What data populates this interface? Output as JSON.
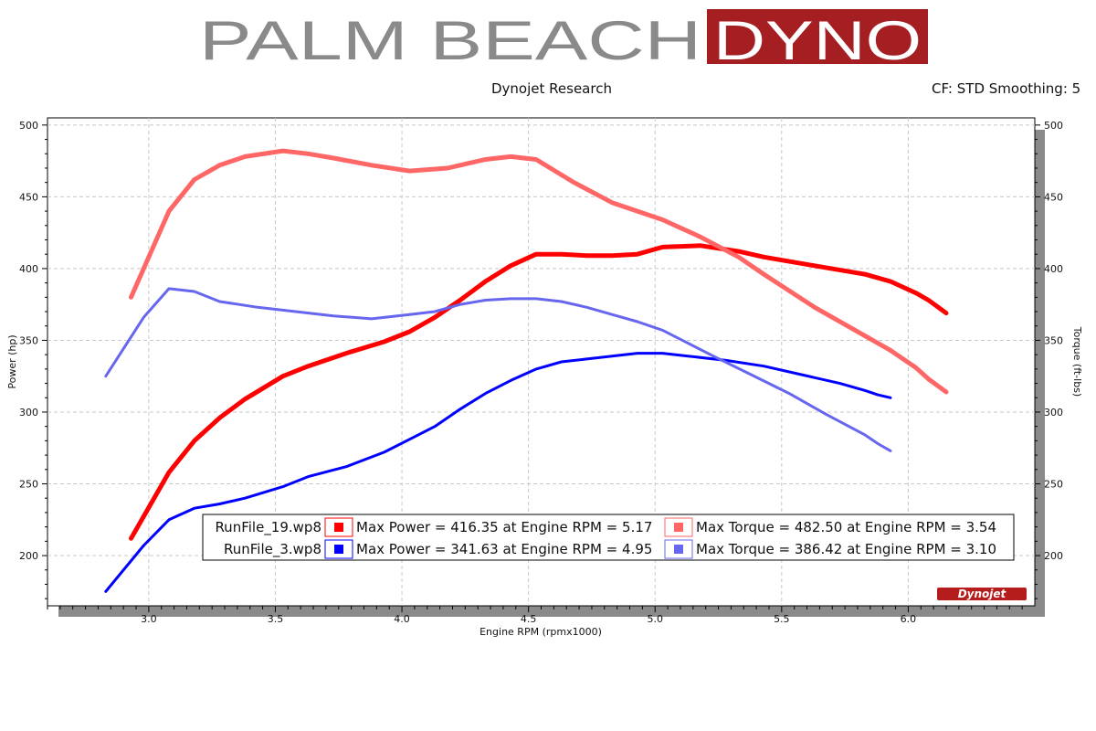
{
  "logo": {
    "part1": "PALM BEACH",
    "part2": "DYNO",
    "part1_color": "#8a8a8a",
    "part2_bg": "#a51e22",
    "part2_color": "#ffffff"
  },
  "header": {
    "title": "Dynojet Research",
    "settings": "CF: STD Smoothing: 5"
  },
  "brand_mark": "Dynojet",
  "chart_data": {
    "type": "line",
    "xlabel": "Engine RPM (rpmx1000)",
    "ylabel_left": "Power (hp)",
    "ylabel_right": "Torque (ft-lbs)",
    "xlim": [
      2.6,
      6.5
    ],
    "ylim": [
      165,
      505
    ],
    "x_ticks": [
      3.0,
      3.5,
      4.0,
      4.5,
      5.0,
      5.5,
      6.0
    ],
    "x_tick_labels": [
      "3.0",
      "3.5",
      "4.0",
      "4.5",
      "5.0",
      "5.5",
      "6.0"
    ],
    "y_ticks": [
      200,
      250,
      300,
      350,
      400,
      450,
      500
    ],
    "y_tick_labels": [
      "200",
      "250",
      "300",
      "350",
      "400",
      "450",
      "500"
    ],
    "grid": true,
    "legend_position": "bottom-center",
    "series": [
      {
        "name": "RunFile_19.wp8 Power",
        "file": "RunFile_19.wp8",
        "color": "#ff0000",
        "width": 5,
        "x": [
          2.93,
          3.08,
          3.18,
          3.28,
          3.38,
          3.53,
          3.63,
          3.78,
          3.93,
          4.03,
          4.13,
          4.23,
          4.33,
          4.43,
          4.53,
          4.63,
          4.73,
          4.83,
          4.93,
          5.03,
          5.18,
          5.33,
          5.43,
          5.63,
          5.83,
          5.93,
          6.03,
          6.08,
          6.15
        ],
        "y": [
          212,
          258,
          280,
          296,
          309,
          325,
          332,
          341,
          349,
          356,
          366,
          378,
          391,
          402,
          410,
          410,
          409,
          409,
          410,
          415,
          416,
          412,
          408,
          402,
          396,
          391,
          383,
          378,
          369
        ]
      },
      {
        "name": "RunFile_19.wp8 Torque",
        "file": "RunFile_19.wp8",
        "color": "#ff6666",
        "width": 5,
        "x": [
          2.93,
          3.08,
          3.18,
          3.28,
          3.38,
          3.53,
          3.63,
          3.73,
          3.88,
          4.03,
          4.18,
          4.33,
          4.43,
          4.53,
          4.68,
          4.83,
          4.93,
          5.03,
          5.18,
          5.33,
          5.43,
          5.63,
          5.83,
          5.93,
          6.03,
          6.08,
          6.15
        ],
        "y": [
          380,
          440,
          462,
          472,
          478,
          482,
          480,
          477,
          472,
          468,
          470,
          476,
          478,
          476,
          460,
          446,
          440,
          434,
          422,
          408,
          396,
          373,
          353,
          343,
          331,
          323,
          314
        ]
      },
      {
        "name": "RunFile_3.wp8 Power",
        "file": "RunFile_3.wp8",
        "color": "#0000ff",
        "width": 3,
        "x": [
          2.83,
          2.98,
          3.08,
          3.18,
          3.28,
          3.38,
          3.53,
          3.63,
          3.78,
          3.93,
          4.03,
          4.13,
          4.23,
          4.33,
          4.43,
          4.53,
          4.63,
          4.73,
          4.83,
          4.93,
          5.03,
          5.13,
          5.28,
          5.43,
          5.58,
          5.73,
          5.83,
          5.88,
          5.93
        ],
        "y": [
          175,
          207,
          225,
          233,
          236,
          240,
          248,
          255,
          262,
          272,
          281,
          290,
          302,
          313,
          322,
          330,
          335,
          337,
          339,
          341,
          341,
          339,
          336,
          332,
          326,
          320,
          315,
          312,
          310
        ]
      },
      {
        "name": "RunFile_3.wp8 Torque",
        "file": "RunFile_3.wp8",
        "color": "#6666ee",
        "width": 3,
        "x": [
          2.83,
          2.98,
          3.08,
          3.18,
          3.28,
          3.43,
          3.58,
          3.73,
          3.88,
          4.03,
          4.13,
          4.23,
          4.33,
          4.43,
          4.53,
          4.63,
          4.73,
          4.83,
          4.93,
          5.03,
          5.13,
          5.23,
          5.38,
          5.53,
          5.68,
          5.83,
          5.88,
          5.93
        ],
        "y": [
          325,
          366,
          386,
          384,
          377,
          373,
          370,
          367,
          365,
          368,
          370,
          375,
          378,
          379,
          379,
          377,
          373,
          368,
          363,
          357,
          348,
          339,
          326,
          313,
          298,
          284,
          278,
          273
        ]
      }
    ],
    "legend": [
      {
        "file": "RunFile_19.wp8",
        "power_color": "#ff0000",
        "torque_color": "#ff6666",
        "power_text": "Max Power = 416.35 at Engine RPM = 5.17",
        "torque_text": "Max Torque = 482.50 at Engine RPM = 3.54"
      },
      {
        "file": "RunFile_3.wp8",
        "power_color": "#0000ff",
        "torque_color": "#6666ee",
        "power_text": "Max Power = 341.63 at Engine RPM = 4.95",
        "torque_text": "Max Torque = 386.42 at Engine RPM = 3.10"
      }
    ]
  }
}
